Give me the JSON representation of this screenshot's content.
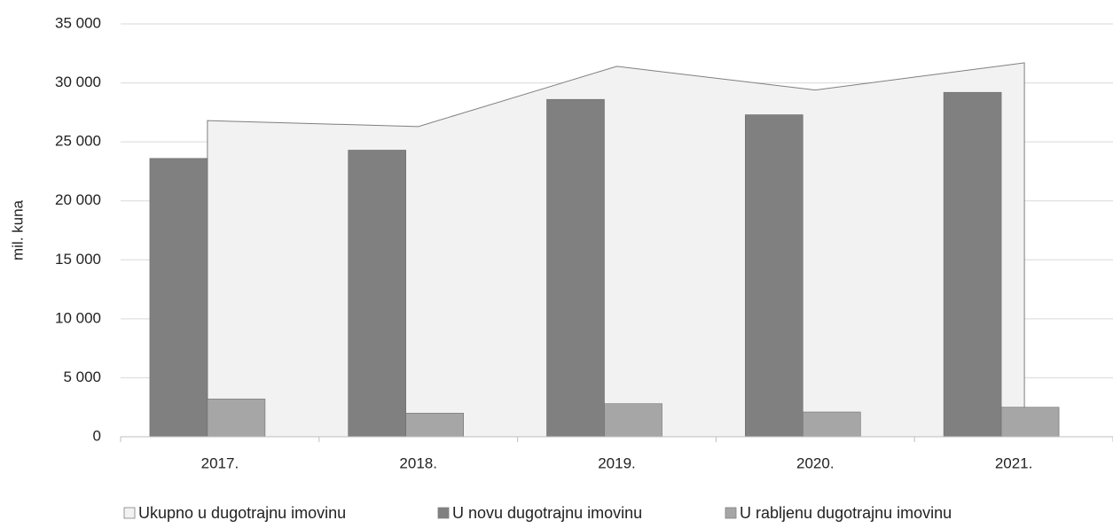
{
  "chart_data": {
    "type": "bar",
    "ylabel": "mil. kuna",
    "xlabel": "",
    "ylim": [
      0,
      35000
    ],
    "yticks": [
      0,
      5000,
      10000,
      15000,
      20000,
      25000,
      30000,
      35000
    ],
    "ytick_labels": [
      "0",
      "5 000",
      "10 000",
      "15 000",
      "20 000",
      "25 000",
      "30 000",
      "35 000"
    ],
    "grid": true,
    "legend_position": "bottom",
    "categories": [
      "2017.",
      "2018.",
      "2019.",
      "2020.",
      "2021."
    ],
    "series": [
      {
        "name": "Ukupno u dugotrajnu imovinu",
        "kind": "area",
        "color": "#f2f2f2",
        "stroke": "#7f7f7f",
        "values": [
          26800,
          26300,
          31400,
          29400,
          31700
        ]
      },
      {
        "name": "U novu dugotrajnu imovinu",
        "kind": "bar",
        "color": "#808080",
        "values": [
          23600,
          24300,
          28600,
          27300,
          29200
        ]
      },
      {
        "name": "U rabljenu dugotrajnu imovinu",
        "kind": "bar",
        "color": "#a6a6a6",
        "values": [
          3200,
          2000,
          2800,
          2100,
          2500
        ]
      }
    ]
  }
}
